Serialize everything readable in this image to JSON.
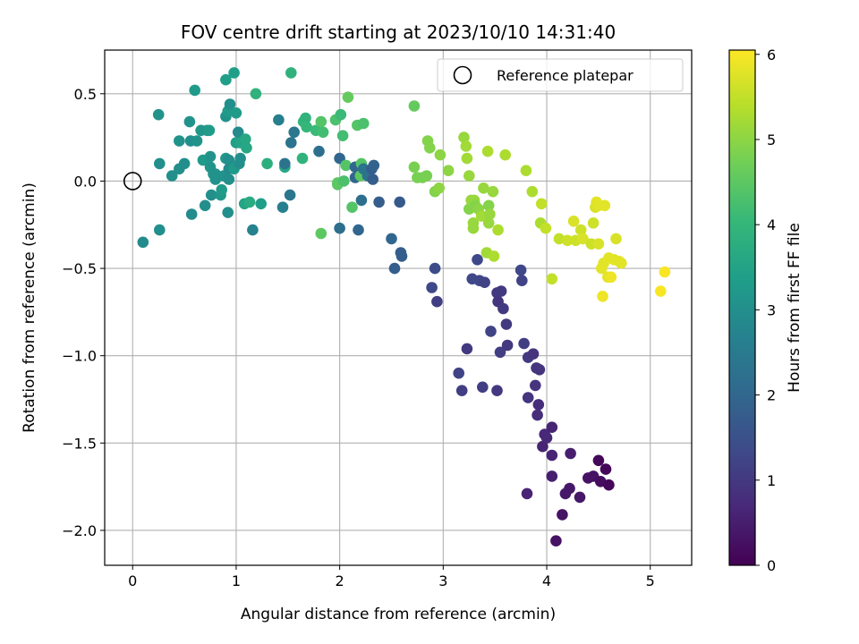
{
  "chart_data": {
    "type": "scatter",
    "title": "FOV centre drift starting at 2023/10/10 14:31:40",
    "xlabel": "Angular distance from reference (arcmin)",
    "ylabel": "Rotation from reference (arcmin)",
    "xlim": [
      -0.27,
      5.4
    ],
    "ylim": [
      -2.2,
      0.75
    ],
    "xticks": [
      0,
      1,
      2,
      3,
      4,
      5
    ],
    "xtick_labels": [
      "0",
      "1",
      "2",
      "3",
      "4",
      "5"
    ],
    "yticks": [
      0.5,
      0.0,
      -0.5,
      -1.0,
      -1.5,
      -2.0
    ],
    "ytick_labels": [
      "0.5",
      "0.0",
      "−0.5",
      "−1.0",
      "−1.5",
      "−2.0"
    ],
    "grid": true,
    "colormap": "viridis",
    "colorbar": {
      "label": "Hours from first FF file",
      "range": [
        0,
        6.05
      ],
      "ticks": [
        0,
        1,
        2,
        3,
        4,
        5,
        6
      ],
      "tick_labels": [
        "0",
        "1",
        "2",
        "3",
        "4",
        "5",
        "6"
      ]
    },
    "legend": {
      "position": "top-right",
      "entries": [
        "Reference platepar"
      ]
    },
    "reference_point": {
      "x": 0.0,
      "y": 0.0
    },
    "points": [
      [
        0.1,
        -0.35,
        2.9
      ],
      [
        0.25,
        0.38,
        3.1
      ],
      [
        0.26,
        0.1,
        3.0
      ],
      [
        0.26,
        -0.28,
        3.0
      ],
      [
        0.38,
        0.03,
        3.0
      ],
      [
        0.45,
        0.23,
        3.1
      ],
      [
        0.45,
        0.07,
        3.0
      ],
      [
        0.5,
        0.1,
        3.0
      ],
      [
        0.55,
        0.34,
        3.1
      ],
      [
        0.56,
        0.23,
        3.0
      ],
      [
        0.57,
        -0.19,
        2.9
      ],
      [
        0.6,
        0.52,
        3.3
      ],
      [
        0.62,
        0.23,
        3.1
      ],
      [
        0.66,
        0.29,
        3.2
      ],
      [
        0.68,
        0.12,
        3.3
      ],
      [
        0.7,
        -0.14,
        3.0
      ],
      [
        0.72,
        0.29,
        3.2
      ],
      [
        0.74,
        0.29,
        3.3
      ],
      [
        0.75,
        0.08,
        3.1
      ],
      [
        0.75,
        0.14,
        3.1
      ],
      [
        0.76,
        -0.08,
        3.0
      ],
      [
        0.78,
        0.04,
        3.1
      ],
      [
        0.8,
        0.04,
        3.1
      ],
      [
        0.8,
        0.01,
        3.1
      ],
      [
        0.85,
        -0.08,
        3.2
      ],
      [
        0.86,
        -0.05,
        3.3
      ],
      [
        0.88,
        0.03,
        3.1
      ],
      [
        0.9,
        0.13,
        3.2
      ],
      [
        0.9,
        0.58,
        3.4
      ],
      [
        0.9,
        0.37,
        3.1
      ],
      [
        0.92,
        0.4,
        3.3
      ],
      [
        0.92,
        -0.18,
        3.0
      ],
      [
        0.93,
        0.12,
        3.0
      ],
      [
        0.93,
        0.07,
        2.9
      ],
      [
        0.93,
        0.01,
        3.0
      ],
      [
        0.94,
        0.44,
        3.0
      ],
      [
        0.98,
        0.62,
        3.4
      ],
      [
        0.98,
        0.07,
        3.3
      ],
      [
        1.0,
        0.39,
        3.3
      ],
      [
        1.0,
        0.22,
        3.4
      ],
      [
        1.02,
        0.28,
        2.9
      ],
      [
        1.03,
        0.1,
        3.0
      ],
      [
        1.04,
        0.13,
        3.0
      ],
      [
        1.04,
        0.22,
        3.5
      ],
      [
        1.07,
        0.22,
        3.5
      ],
      [
        1.08,
        -0.13,
        3.5
      ],
      [
        1.09,
        0.24,
        3.6
      ],
      [
        1.1,
        0.19,
        3.6
      ],
      [
        1.13,
        -0.12,
        3.7
      ],
      [
        1.16,
        -0.28,
        2.7
      ],
      [
        1.19,
        0.5,
        3.9
      ],
      [
        1.24,
        -0.13,
        3.4
      ],
      [
        1.3,
        0.1,
        3.8
      ],
      [
        1.41,
        0.35,
        2.6
      ],
      [
        1.45,
        -0.15,
        2.6
      ],
      [
        1.47,
        0.08,
        3.6
      ],
      [
        1.47,
        0.1,
        2.3
      ],
      [
        1.52,
        -0.08,
        2.4
      ],
      [
        1.53,
        0.62,
        3.9
      ],
      [
        1.53,
        0.22,
        2.3
      ],
      [
        1.56,
        0.28,
        2.4
      ],
      [
        1.64,
        0.13,
        3.9
      ],
      [
        1.65,
        0.34,
        4.0
      ],
      [
        1.67,
        0.36,
        3.9
      ],
      [
        1.68,
        0.31,
        4.0
      ],
      [
        1.77,
        0.29,
        4.1
      ],
      [
        1.8,
        0.17,
        2.2
      ],
      [
        1.82,
        -0.3,
        4.5
      ],
      [
        1.82,
        0.34,
        4.4
      ],
      [
        1.84,
        0.28,
        4.2
      ],
      [
        1.96,
        0.35,
        4.3
      ],
      [
        1.98,
        -0.02,
        4.4
      ],
      [
        1.98,
        -0.01,
        4.5
      ],
      [
        2.0,
        -0.27,
        2.2
      ],
      [
        2.0,
        0.13,
        2.0
      ],
      [
        2.01,
        0.38,
        4.1
      ],
      [
        2.03,
        0.26,
        4.2
      ],
      [
        2.04,
        0.0,
        4.3
      ],
      [
        2.06,
        0.09,
        4.4
      ],
      [
        2.08,
        0.48,
        4.6
      ],
      [
        2.12,
        -0.15,
        4.4
      ],
      [
        2.15,
        0.08,
        2.0
      ],
      [
        2.15,
        0.02,
        2.0
      ],
      [
        2.17,
        0.32,
        4.4
      ],
      [
        2.18,
        -0.28,
        2.0
      ],
      [
        2.2,
        0.03,
        4.5
      ],
      [
        2.21,
        0.1,
        4.4
      ],
      [
        2.21,
        -0.11,
        2.2
      ],
      [
        2.23,
        0.33,
        4.3
      ],
      [
        2.23,
        0.07,
        2.3
      ],
      [
        2.27,
        0.03,
        2.3
      ],
      [
        2.31,
        0.07,
        1.8
      ],
      [
        2.32,
        0.01,
        1.8
      ],
      [
        2.33,
        0.09,
        1.9
      ],
      [
        2.38,
        -0.12,
        1.8
      ],
      [
        2.5,
        -0.33,
        2.0
      ],
      [
        2.53,
        -0.5,
        1.8
      ],
      [
        2.58,
        -0.12,
        1.7
      ],
      [
        2.59,
        -0.41,
        1.8
      ],
      [
        2.6,
        -0.43,
        1.8
      ],
      [
        2.72,
        0.43,
        4.6
      ],
      [
        2.72,
        0.08,
        4.8
      ],
      [
        2.75,
        0.02,
        4.8
      ],
      [
        2.8,
        0.02,
        4.8
      ],
      [
        2.84,
        0.03,
        4.8
      ],
      [
        2.85,
        0.23,
        4.9
      ],
      [
        2.87,
        0.19,
        4.9
      ],
      [
        2.89,
        -0.61,
        1.3
      ],
      [
        2.92,
        -0.5,
        1.4
      ],
      [
        2.92,
        -0.06,
        4.9
      ],
      [
        2.94,
        -0.69,
        1.1
      ],
      [
        2.96,
        -0.04,
        5.0
      ],
      [
        2.97,
        0.15,
        5.0
      ],
      [
        3.05,
        0.06,
        5.0
      ],
      [
        3.15,
        -1.1,
        1.2
      ],
      [
        3.18,
        -1.2,
        1.1
      ],
      [
        3.2,
        0.25,
        5.1
      ],
      [
        3.22,
        0.2,
        5.2
      ],
      [
        3.23,
        0.13,
        5.2
      ],
      [
        3.23,
        -0.96,
        1.0
      ],
      [
        3.25,
        0.03,
        5.1
      ],
      [
        3.25,
        -0.16,
        4.9
      ],
      [
        3.27,
        -0.11,
        5.1
      ],
      [
        3.28,
        -0.56,
        1.3
      ],
      [
        3.29,
        -0.24,
        5.1
      ],
      [
        3.29,
        -0.27,
        5.1
      ],
      [
        3.3,
        -0.11,
        5.1
      ],
      [
        3.31,
        -0.14,
        4.9
      ],
      [
        3.33,
        -0.45,
        1.3
      ],
      [
        3.34,
        -0.16,
        5.0
      ],
      [
        3.35,
        -0.57,
        1.3
      ],
      [
        3.37,
        -0.2,
        5.2
      ],
      [
        3.38,
        -1.18,
        1.1
      ],
      [
        3.39,
        -0.04,
        5.1
      ],
      [
        3.4,
        -0.58,
        1.2
      ],
      [
        3.42,
        -0.41,
        5.2
      ],
      [
        3.43,
        0.17,
        5.3
      ],
      [
        3.44,
        -0.14,
        4.9
      ],
      [
        3.44,
        -0.24,
        5.1
      ],
      [
        3.45,
        -0.19,
        5.1
      ],
      [
        3.46,
        -0.86,
        1.2
      ],
      [
        3.48,
        -0.06,
        5.1
      ],
      [
        3.49,
        -0.43,
        5.3
      ],
      [
        3.52,
        -1.2,
        1.0
      ],
      [
        3.52,
        -0.64,
        1.0
      ],
      [
        3.53,
        -0.69,
        0.9
      ],
      [
        3.53,
        -0.28,
        5.3
      ],
      [
        3.55,
        -0.98,
        1.1
      ],
      [
        3.56,
        -0.63,
        1.0
      ],
      [
        3.58,
        -0.73,
        1.0
      ],
      [
        3.6,
        0.15,
        5.3
      ],
      [
        3.61,
        -0.82,
        1.0
      ],
      [
        3.62,
        -0.94,
        1.0
      ],
      [
        3.75,
        -0.51,
        1.3
      ],
      [
        3.76,
        -0.57,
        1.2
      ],
      [
        3.78,
        -0.93,
        1.1
      ],
      [
        3.8,
        0.06,
        5.3
      ],
      [
        3.81,
        -1.79,
        0.6
      ],
      [
        3.82,
        -1.01,
        1.0
      ],
      [
        3.82,
        -1.24,
        0.9
      ],
      [
        3.86,
        -0.06,
        5.3
      ],
      [
        3.87,
        -0.99,
        0.9
      ],
      [
        3.89,
        -1.17,
        0.9
      ],
      [
        3.9,
        -1.07,
        0.9
      ],
      [
        3.91,
        -1.34,
        0.8
      ],
      [
        3.92,
        -1.28,
        0.8
      ],
      [
        3.93,
        -1.08,
        0.9
      ],
      [
        3.94,
        -0.24,
        5.3
      ],
      [
        3.95,
        -0.13,
        5.5
      ],
      [
        3.96,
        -1.52,
        0.6
      ],
      [
        3.98,
        -1.45,
        0.7
      ],
      [
        3.99,
        -0.27,
        5.5
      ],
      [
        4.0,
        -1.47,
        0.7
      ],
      [
        4.05,
        -0.56,
        5.5
      ],
      [
        4.05,
        -1.41,
        0.6
      ],
      [
        4.05,
        -1.69,
        0.5
      ],
      [
        4.05,
        -1.57,
        0.6
      ],
      [
        4.09,
        -2.06,
        0.3
      ],
      [
        4.12,
        -0.33,
        5.5
      ],
      [
        4.15,
        -1.91,
        0.3
      ],
      [
        4.18,
        -1.79,
        0.4
      ],
      [
        4.2,
        -0.34,
        5.6
      ],
      [
        4.22,
        -1.76,
        0.4
      ],
      [
        4.23,
        -1.56,
        0.5
      ],
      [
        4.26,
        -0.23,
        5.7
      ],
      [
        4.28,
        -0.34,
        5.6
      ],
      [
        4.32,
        -1.81,
        0.4
      ],
      [
        4.33,
        -0.28,
        5.6
      ],
      [
        4.35,
        -0.33,
        5.7
      ],
      [
        4.4,
        -1.7,
        0.3
      ],
      [
        4.43,
        -0.36,
        5.6
      ],
      [
        4.45,
        -1.69,
        0.3
      ],
      [
        4.45,
        -0.24,
        5.6
      ],
      [
        4.47,
        -0.15,
        5.7
      ],
      [
        4.48,
        -0.12,
        5.8
      ],
      [
        4.5,
        -1.6,
        0.1
      ],
      [
        4.5,
        -0.36,
        5.7
      ],
      [
        4.5,
        -0.14,
        5.8
      ],
      [
        4.52,
        -1.72,
        0.2
      ],
      [
        4.53,
        -0.5,
        5.8
      ],
      [
        4.54,
        -0.66,
        5.9
      ],
      [
        4.55,
        -0.47,
        5.8
      ],
      [
        4.56,
        -0.14,
        5.8
      ],
      [
        4.57,
        -1.65,
        0.1
      ],
      [
        4.59,
        -0.55,
        5.8
      ],
      [
        4.6,
        -1.74,
        0.1
      ],
      [
        4.6,
        -0.44,
        5.8
      ],
      [
        4.62,
        -0.55,
        5.9
      ],
      [
        4.65,
        -0.45,
        5.8
      ],
      [
        4.67,
        -0.33,
        5.7
      ],
      [
        4.7,
        -0.46,
        5.8
      ],
      [
        4.72,
        -0.47,
        5.8
      ],
      [
        5.1,
        -0.63,
        6.0
      ],
      [
        5.14,
        -0.52,
        6.0
      ]
    ]
  }
}
